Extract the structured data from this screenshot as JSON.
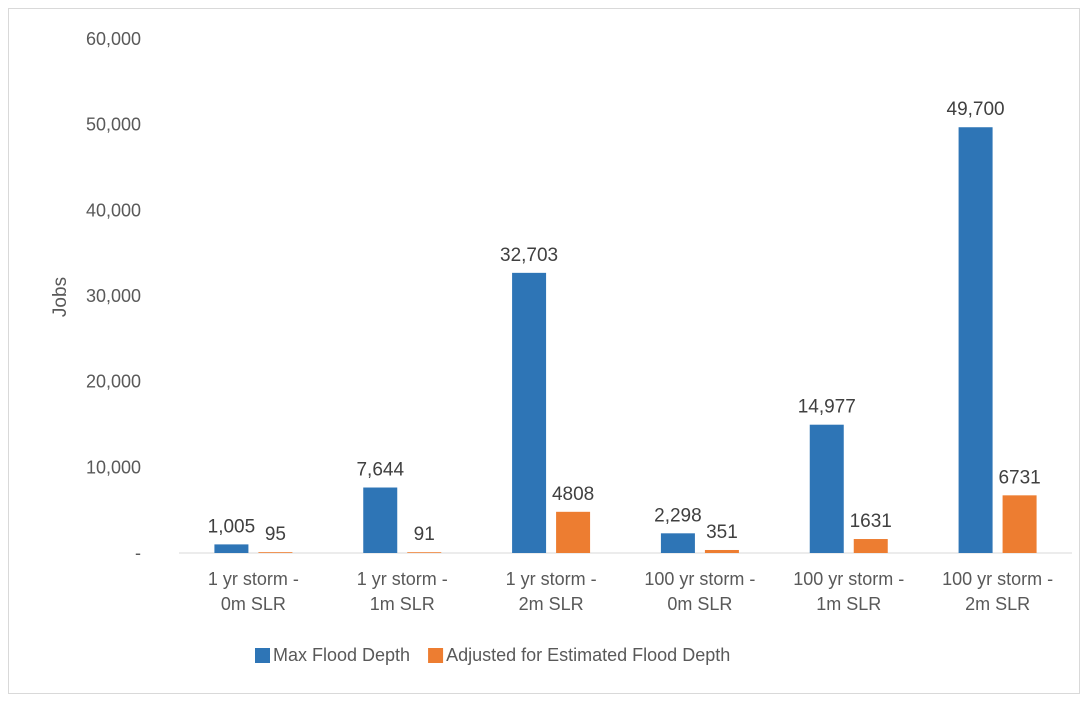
{
  "chart_data": {
    "type": "bar",
    "categories": [
      [
        "1 yr storm -",
        "0m SLR"
      ],
      [
        "1 yr storm -",
        "1m SLR"
      ],
      [
        "1 yr storm -",
        "2m SLR"
      ],
      [
        "100 yr storm -",
        "0m SLR"
      ],
      [
        "100 yr storm -",
        "1m SLR"
      ],
      [
        "100 yr storm -",
        "2m SLR"
      ]
    ],
    "series": [
      {
        "name": "Max Flood Depth",
        "color": "#2e75b6",
        "values": [
          1005,
          7644,
          32703,
          2298,
          14977,
          49700
        ],
        "labels": [
          "1,005",
          "7,644",
          "32,703",
          "2,298",
          "14,977",
          "49,700"
        ]
      },
      {
        "name": "Adjusted for Estimated Flood Depth",
        "color": "#ed7d31",
        "values": [
          95,
          91,
          4808,
          351,
          1631,
          6731
        ],
        "labels": [
          "95",
          "91",
          "4808",
          "351",
          "1631",
          "6731"
        ]
      }
    ],
    "ylabel": "Jobs",
    "xlabel": "",
    "ylim": [
      0,
      60000
    ],
    "yticks": [
      0,
      10000,
      20000,
      30000,
      40000,
      50000,
      60000
    ],
    "ytick_labels": [
      "-",
      "10,000",
      "20,000",
      "30,000",
      "40,000",
      "50,000",
      "60,000"
    ],
    "grid": false,
    "legend_position": "bottom"
  }
}
